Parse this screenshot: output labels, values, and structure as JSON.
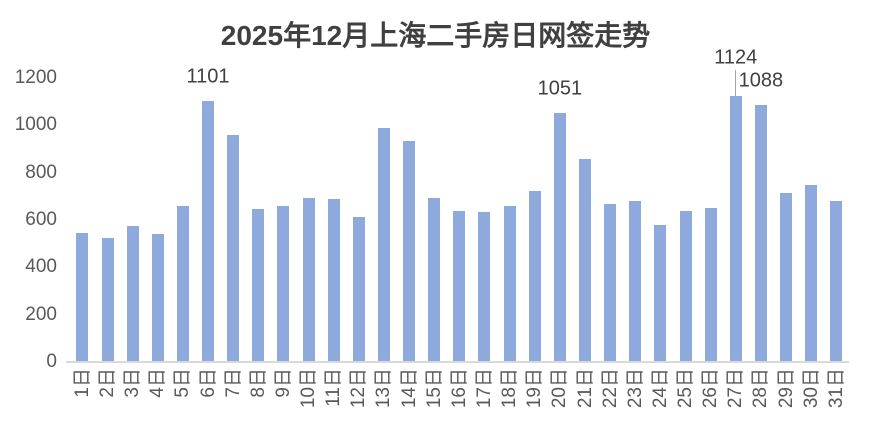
{
  "title": "2025年12月上海二手房日网签走势",
  "colors": {
    "bar": "#8EA9DB",
    "axis_line": "#D9D9D9",
    "axis_label": "#595959",
    "title": "#404040",
    "data_label": "#404040",
    "leader_line": "#A6A6A6"
  },
  "chart_data": {
    "type": "bar",
    "title": "2025年12月上海二手房日网签走势",
    "categories": [
      "1日",
      "2日",
      "3日",
      "4日",
      "5日",
      "6日",
      "7日",
      "8日",
      "9日",
      "10日",
      "11日",
      "12日",
      "13日",
      "14日",
      "15日",
      "16日",
      "17日",
      "18日",
      "19日",
      "20日",
      "21日",
      "22日",
      "23日",
      "24日",
      "25日",
      "26日",
      "27日",
      "28日",
      "29日",
      "30日",
      "31日"
    ],
    "values": [
      545,
      525,
      575,
      540,
      660,
      1101,
      958,
      645,
      660,
      694,
      690,
      612,
      990,
      934,
      695,
      640,
      632,
      658,
      723,
      1051,
      856,
      666,
      682,
      580,
      640,
      652,
      1124,
      1088,
      716,
      750,
      682
    ],
    "labeled_points": [
      {
        "category": "6日",
        "value": 1101,
        "label": "1101",
        "lift": 0,
        "leader_line": false
      },
      {
        "category": "20日",
        "value": 1051,
        "label": "1051",
        "lift": 0,
        "leader_line": false
      },
      {
        "category": "27日",
        "value": 1124,
        "label": "1124",
        "lift": 14,
        "leader_line": true
      },
      {
        "category": "28日",
        "value": 1088,
        "label": "1088",
        "lift": 0,
        "leader_line": false
      }
    ],
    "xlabel": "",
    "ylabel": "",
    "ylim": [
      0,
      1200
    ],
    "y_ticks": [
      "0",
      "200",
      "400",
      "600",
      "800",
      "1000",
      "1200"
    ],
    "grid": false,
    "legend": "none",
    "x_tick_rotation": -90
  }
}
